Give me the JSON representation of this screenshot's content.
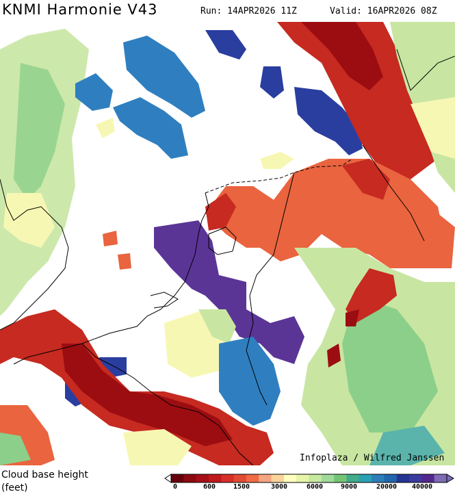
{
  "header": {
    "title": "KNMI Harmonie V43",
    "run": "Run: 14APR2026 11Z",
    "valid": "Valid: 16APR2026 08Z"
  },
  "credit": "Infoplaza / Wilfred Janssen",
  "legend": {
    "label_line1": "Cloud base height",
    "label_line2": "(feet)",
    "ticks": [
      "0",
      "600",
      "1500",
      "3000",
      "6000",
      "9000",
      "20000",
      "40000"
    ],
    "colors": [
      "#67000d",
      "#8b0a10",
      "#a50f15",
      "#c0191c",
      "#d62f27",
      "#e34a33",
      "#ef6a45",
      "#f4a582",
      "#fcd39a",
      "#ffffbf",
      "#e6f5a8",
      "#c7e9a0",
      "#a1d99b",
      "#74c476",
      "#41ab8a",
      "#2b9fb4",
      "#2c7fb8",
      "#2166ac",
      "#253494",
      "#3b3a9e",
      "#54278f",
      "#7d6bb5"
    ]
  },
  "map": {
    "region": "Netherlands and surroundings",
    "colors": {
      "deep_red": "#9c0d12",
      "red": "#c62a20",
      "orange_red": "#e9643f",
      "yellow": "#f7f7b4",
      "light_green": "#c8e6a2",
      "green": "#8ccf8a",
      "teal": "#5ab4ac",
      "blue": "#2f7fc0",
      "dark_blue": "#2a3ea0",
      "purple": "#5a3596"
    }
  }
}
